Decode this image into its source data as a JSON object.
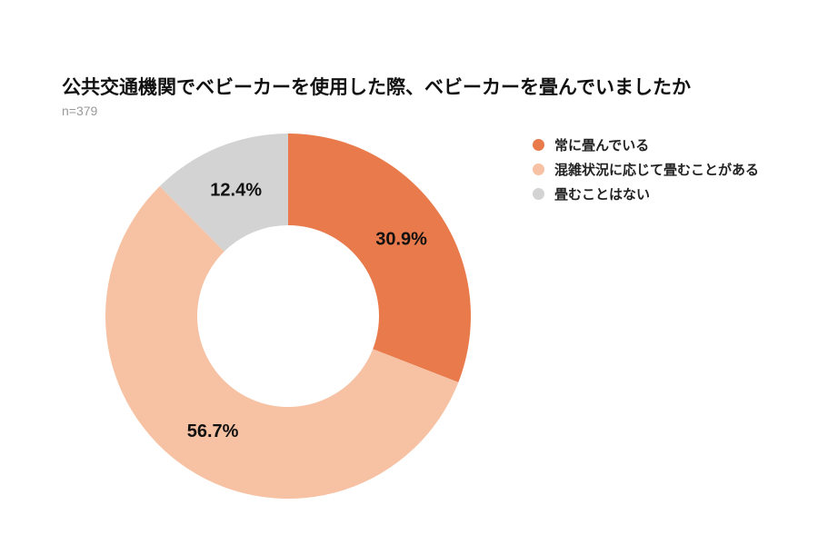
{
  "chart_data": {
    "type": "pie",
    "style": "donut",
    "title": "公共交通機関でベビーカーを使用した際、ベビーカーを畳んでいましたか",
    "subtitle": "n=379",
    "categories": [
      "常に畳んでいる",
      "混雑状況に応じて畳むことがある",
      "畳むことはない"
    ],
    "values": [
      30.9,
      56.7,
      12.4
    ],
    "labels": [
      "30.9%",
      "56.7%",
      "12.4%"
    ],
    "colors": [
      "#E97A4C",
      "#F6C2A3",
      "#D3D3D3"
    ],
    "legend_position": "right"
  }
}
